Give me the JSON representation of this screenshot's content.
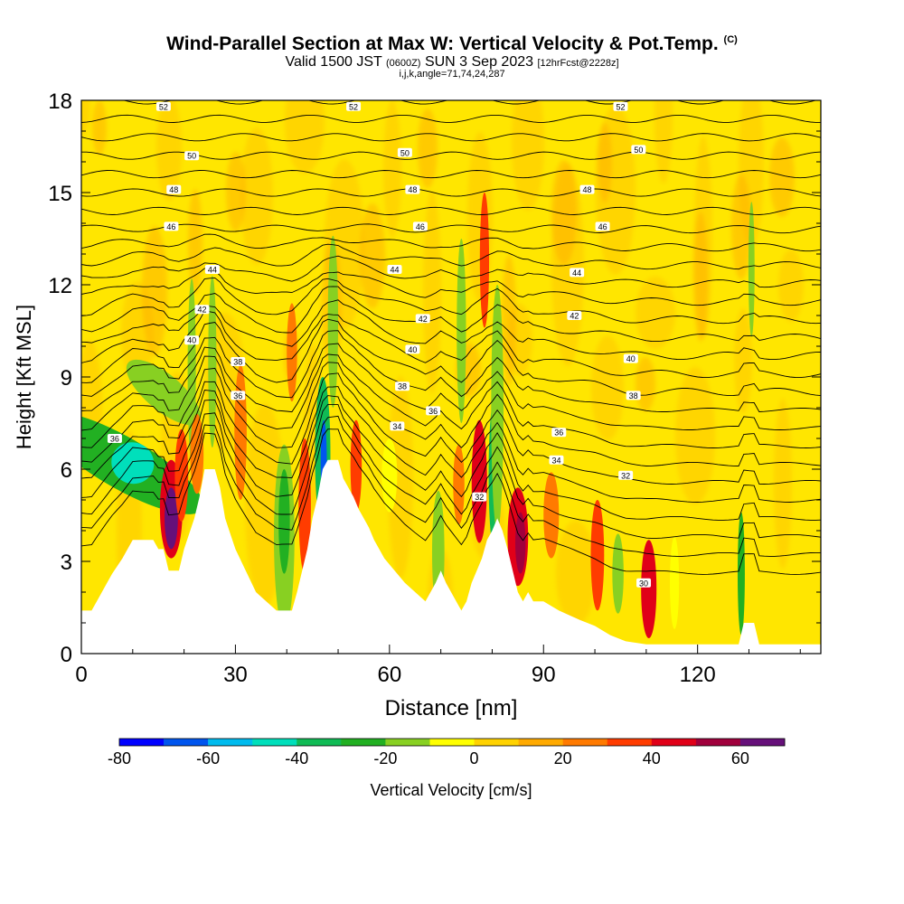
{
  "header": {
    "title": "Wind-Parallel Section at Max W: Vertical Velocity & Pot.Temp.",
    "copyright": "(C)",
    "valid_prefix": "Valid 1500 JST",
    "valid_z": "(0600Z)",
    "valid_date": "SUN 3 Sep 2023",
    "forecast": "[12hrFcst@2228z]",
    "indices": "i,j,k,angle=71,74,24,287"
  },
  "colors": {
    "scale": [
      "#0000ff",
      "#0055ee",
      "#00bbee",
      "#00dfbb",
      "#10bb55",
      "#22b022",
      "#88d022",
      "#ffff00",
      "#ffd200",
      "#ffaa00",
      "#ff7a00",
      "#ff3c00",
      "#e00018",
      "#a0003c",
      "#66107a"
    ],
    "contour": "#000000",
    "terrain": "#ffffff"
  },
  "chart_data": {
    "type": "heatmap",
    "title": "Wind-Parallel Section at Max W: Vertical Velocity & Pot.Temp.",
    "xlabel": "Distance [nm]",
    "ylabel": "Height [Kft MSL]",
    "xlim": [
      0,
      144
    ],
    "ylim": [
      0,
      18
    ],
    "xticks": [
      0,
      30,
      60,
      90,
      120
    ],
    "yticks": [
      0,
      3,
      6,
      9,
      12,
      15,
      18
    ],
    "colorbar": {
      "label": "Vertical Velocity [cm/s]",
      "ticks": [
        -80,
        -60,
        -40,
        -20,
        0,
        20,
        40,
        60
      ],
      "min": -80,
      "max": 70,
      "step": 10
    },
    "terrain_height": [
      [
        0,
        1.4
      ],
      [
        2,
        1.4
      ],
      [
        3,
        1.7
      ],
      [
        4,
        2
      ],
      [
        5,
        2.3
      ],
      [
        6,
        2.6
      ],
      [
        8,
        3.1
      ],
      [
        9,
        3.4
      ],
      [
        10,
        3.7
      ],
      [
        14,
        3.7
      ],
      [
        15,
        3.4
      ],
      [
        16,
        3.4
      ],
      [
        17,
        2.7
      ],
      [
        19,
        2.7
      ],
      [
        20,
        3.4
      ],
      [
        22,
        4.4
      ],
      [
        23,
        5.1
      ],
      [
        24,
        6
      ],
      [
        26,
        6
      ],
      [
        27,
        5.4
      ],
      [
        28,
        4.4
      ],
      [
        30,
        3.4
      ],
      [
        32,
        2.7
      ],
      [
        34,
        2
      ],
      [
        36,
        1.7
      ],
      [
        38,
        1.4
      ],
      [
        41,
        1.4
      ],
      [
        42,
        2
      ],
      [
        43,
        2.7
      ],
      [
        44,
        3.4
      ],
      [
        45,
        4.4
      ],
      [
        46,
        5.1
      ],
      [
        47,
        6
      ],
      [
        48,
        6.3
      ],
      [
        50,
        6.3
      ],
      [
        51,
        5.7
      ],
      [
        53,
        5.1
      ],
      [
        54,
        4.7
      ],
      [
        55,
        4.4
      ],
      [
        56,
        4.1
      ],
      [
        57,
        3.7
      ],
      [
        58,
        3.4
      ],
      [
        59,
        3.1
      ],
      [
        61,
        2.7
      ],
      [
        63,
        2.3
      ],
      [
        65,
        2
      ],
      [
        67,
        1.7
      ],
      [
        68,
        2
      ],
      [
        69,
        2.3
      ],
      [
        70,
        2.7
      ],
      [
        71,
        2.3
      ],
      [
        72,
        2
      ],
      [
        73,
        1.7
      ],
      [
        74,
        1.4
      ],
      [
        75,
        1.7
      ],
      [
        76,
        2.3
      ],
      [
        77,
        2.7
      ],
      [
        78,
        3.1
      ],
      [
        79,
        3.7
      ],
      [
        80,
        4
      ],
      [
        81,
        4.4
      ],
      [
        82,
        4
      ],
      [
        83,
        3.4
      ],
      [
        84,
        2.7
      ],
      [
        85,
        2
      ],
      [
        86,
        1.7
      ],
      [
        87,
        2
      ],
      [
        88,
        1.7
      ],
      [
        90,
        1.7
      ],
      [
        93,
        1.4
      ],
      [
        97,
        1.1
      ],
      [
        100,
        0.9
      ],
      [
        103,
        0.6
      ],
      [
        106,
        0.4
      ],
      [
        110,
        0.3
      ],
      [
        114,
        0.3
      ],
      [
        126,
        0.3
      ],
      [
        128,
        0.3
      ],
      [
        129,
        1
      ],
      [
        131,
        1
      ],
      [
        132,
        0.3
      ],
      [
        136,
        0.3
      ],
      [
        144,
        0.3
      ]
    ],
    "theta_contour_labels": [
      {
        "value": "52",
        "x": 16,
        "y": 17.8
      },
      {
        "value": "52",
        "x": 53,
        "y": 17.8
      },
      {
        "value": "52",
        "x": 105,
        "y": 17.8
      },
      {
        "value": "50",
        "x": 21.5,
        "y": 16.2
      },
      {
        "value": "50",
        "x": 63,
        "y": 16.3
      },
      {
        "value": "50",
        "x": 108.5,
        "y": 16.4
      },
      {
        "value": "48",
        "x": 18,
        "y": 15.1
      },
      {
        "value": "48",
        "x": 64.5,
        "y": 15.1
      },
      {
        "value": "48",
        "x": 98.5,
        "y": 15.1
      },
      {
        "value": "46",
        "x": 17.5,
        "y": 13.9
      },
      {
        "value": "46",
        "x": 66,
        "y": 13.9
      },
      {
        "value": "46",
        "x": 101.5,
        "y": 13.9
      },
      {
        "value": "44",
        "x": 25.5,
        "y": 12.5
      },
      {
        "value": "44",
        "x": 61,
        "y": 12.5
      },
      {
        "value": "44",
        "x": 96.5,
        "y": 12.4
      },
      {
        "value": "42",
        "x": 23.5,
        "y": 11.2
      },
      {
        "value": "42",
        "x": 66.5,
        "y": 10.9
      },
      {
        "value": "42",
        "x": 96,
        "y": 11
      },
      {
        "value": "40",
        "x": 21.5,
        "y": 10.2
      },
      {
        "value": "40",
        "x": 64.5,
        "y": 9.9
      },
      {
        "value": "40",
        "x": 107,
        "y": 9.6
      },
      {
        "value": "38",
        "x": 30.5,
        "y": 9.5
      },
      {
        "value": "38",
        "x": 62.5,
        "y": 8.7
      },
      {
        "value": "38",
        "x": 107.5,
        "y": 8.4
      },
      {
        "value": "36",
        "x": 6.5,
        "y": 7
      },
      {
        "value": "36",
        "x": 30.5,
        "y": 8.4
      },
      {
        "value": "36",
        "x": 68.5,
        "y": 7.9
      },
      {
        "value": "36",
        "x": 93,
        "y": 7.2
      },
      {
        "value": "34",
        "x": 61.5,
        "y": 7.4
      },
      {
        "value": "34",
        "x": 92.5,
        "y": 6.3
      },
      {
        "value": "32",
        "x": 106,
        "y": 5.8
      },
      {
        "value": "32",
        "x": 77.5,
        "y": 5.1
      },
      {
        "value": "30",
        "x": 109.5,
        "y": 2.3
      }
    ],
    "w_cells": [
      {
        "x": 8,
        "y": 6.2,
        "rx": 5,
        "ry": 3,
        "rot": -60,
        "v": -30
      },
      {
        "x": 10,
        "y": 6.2,
        "rx": 4,
        "ry": 0.7,
        "rot": -60,
        "v": -50
      },
      {
        "x": 16,
        "y": 8.5,
        "rx": 3.5,
        "ry": 1.5,
        "rot": -50,
        "v": -20
      },
      {
        "x": 17.5,
        "y": 4.7,
        "rx": 2.2,
        "ry": 1.6,
        "v": 40
      },
      {
        "x": 17.5,
        "y": 4.4,
        "rx": 1.3,
        "ry": 1,
        "v": 60
      },
      {
        "x": 19.5,
        "y": 5.8,
        "rx": 1.3,
        "ry": 1.5,
        "v": 30
      },
      {
        "x": 21.5,
        "y": 9.2,
        "rx": 0.8,
        "ry": 3,
        "v": -20
      },
      {
        "x": 22.5,
        "y": 6.5,
        "rx": 1.3,
        "ry": 1.3,
        "v": 20
      },
      {
        "x": 25.5,
        "y": 9.5,
        "rx": 0.8,
        "ry": 2.8,
        "v": -20
      },
      {
        "x": 31,
        "y": 7.2,
        "rx": 1.2,
        "ry": 2.2,
        "v": 20
      },
      {
        "x": 39.5,
        "y": 3.8,
        "rx": 2,
        "ry": 3,
        "v": -20
      },
      {
        "x": 39.5,
        "y": 4.3,
        "rx": 1.1,
        "ry": 1.7,
        "v": -30
      },
      {
        "x": 41,
        "y": 9.8,
        "rx": 1,
        "ry": 1.6,
        "v": 20
      },
      {
        "x": 43.5,
        "y": 4.8,
        "rx": 1.2,
        "ry": 2.2,
        "v": 30
      },
      {
        "x": 47,
        "y": 6.5,
        "rx": 1.5,
        "ry": 2.5,
        "v": -40
      },
      {
        "x": 47.2,
        "y": 6.2,
        "rx": 0.6,
        "ry": 1.4,
        "v": -70
      },
      {
        "x": 49,
        "y": 10.8,
        "rx": 1,
        "ry": 2.8,
        "v": -20
      },
      {
        "x": 53.5,
        "y": 6.1,
        "rx": 1.1,
        "ry": 1.5,
        "v": 30
      },
      {
        "x": 60,
        "y": 5.8,
        "rx": 1.5,
        "ry": 1.2,
        "v": -10
      },
      {
        "x": 69.5,
        "y": 3.3,
        "rx": 1.2,
        "ry": 2,
        "v": -20
      },
      {
        "x": 73.5,
        "y": 5.5,
        "rx": 1.1,
        "ry": 1.3,
        "v": 20
      },
      {
        "x": 74,
        "y": 10.5,
        "rx": 0.9,
        "ry": 3,
        "v": -20
      },
      {
        "x": 77.5,
        "y": 5.6,
        "rx": 1.5,
        "ry": 2,
        "v": 40
      },
      {
        "x": 78.5,
        "y": 12.8,
        "rx": 0.9,
        "ry": 2.2,
        "v": 30
      },
      {
        "x": 80.5,
        "y": 5.8,
        "rx": 1.2,
        "ry": 2.5,
        "v": -40
      },
      {
        "x": 81,
        "y": 8,
        "rx": 1.2,
        "ry": 4,
        "v": -20
      },
      {
        "x": 85,
        "y": 3.8,
        "rx": 2,
        "ry": 1.6,
        "v": 40
      },
      {
        "x": 85.5,
        "y": 3.6,
        "rx": 1,
        "ry": 1,
        "v": 50
      },
      {
        "x": 91.5,
        "y": 4.5,
        "rx": 1.5,
        "ry": 1.4,
        "v": 20
      },
      {
        "x": 100.5,
        "y": 3.2,
        "rx": 1.3,
        "ry": 1.8,
        "v": 30
      },
      {
        "x": 104.5,
        "y": 2.6,
        "rx": 1.1,
        "ry": 1.3,
        "v": -20
      },
      {
        "x": 110.5,
        "y": 2.1,
        "rx": 1.5,
        "ry": 1.6,
        "v": 40
      },
      {
        "x": 115.5,
        "y": 2.3,
        "rx": 0.9,
        "ry": 1.5,
        "v": -10
      },
      {
        "x": 128.5,
        "y": 2.6,
        "rx": 0.7,
        "ry": 2,
        "v": -30
      },
      {
        "x": 130.5,
        "y": 12.5,
        "rx": 0.6,
        "ry": 2.2,
        "v": -20
      }
    ]
  }
}
